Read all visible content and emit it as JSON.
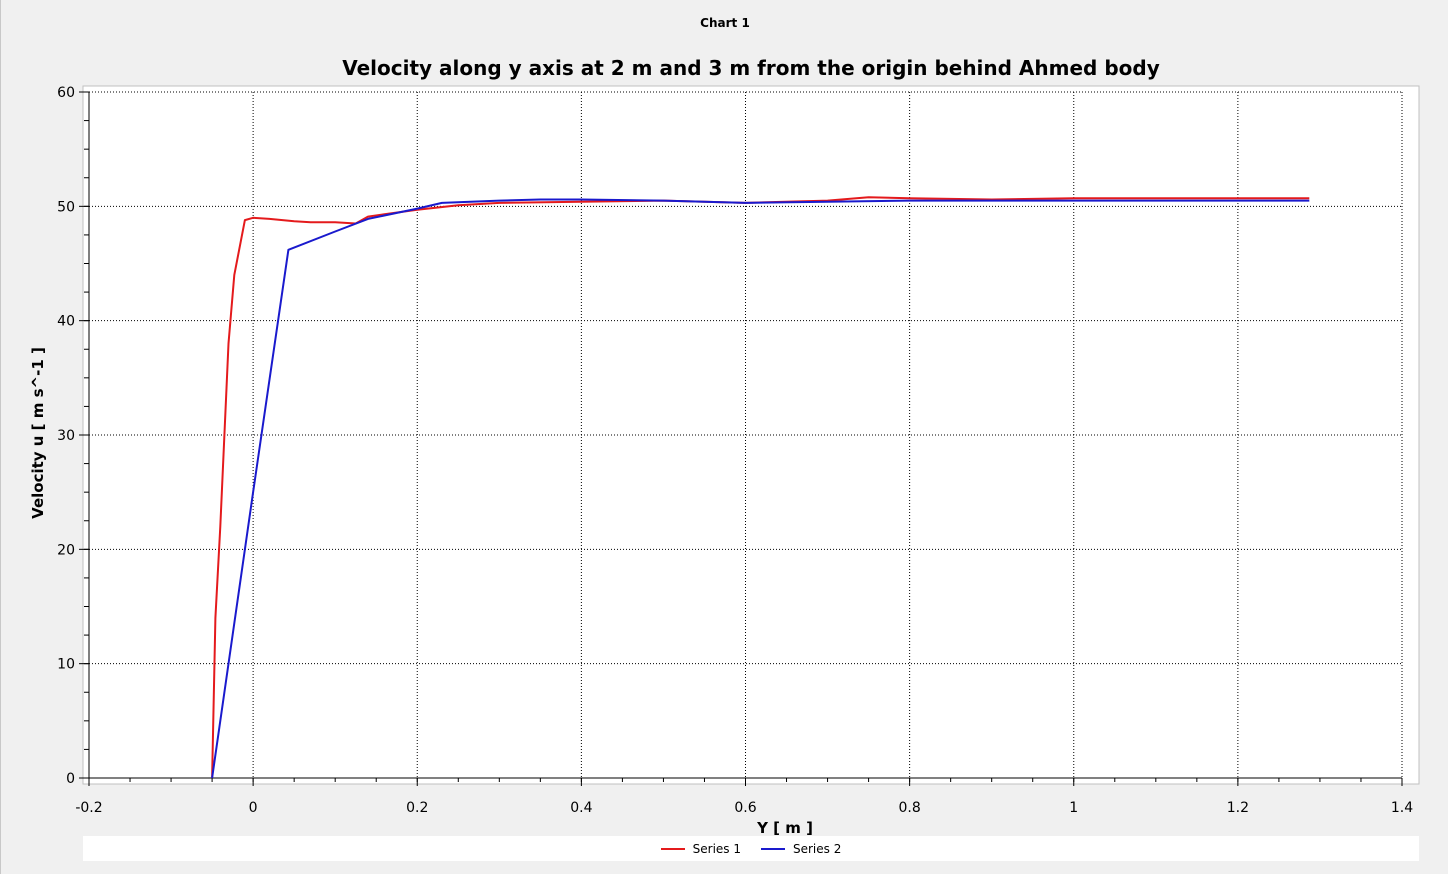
{
  "window": {
    "title": "Chart 1"
  },
  "chart_data": {
    "type": "line",
    "title": "Velocity along y axis at 2 m and 3 m from the origin behind Ahmed body",
    "xlabel": "Y [ m ]",
    "ylabel": "Velocity u [ m s^-1 ]",
    "xlim": [
      -0.2,
      1.4
    ],
    "ylim": [
      0,
      60
    ],
    "xticks": [
      "-0.2",
      "0",
      "0.2",
      "0.4",
      "0.6",
      "0.8",
      "1",
      "1.2",
      "1.4"
    ],
    "yticks": [
      "0",
      "10",
      "20",
      "30",
      "40",
      "50",
      "60"
    ],
    "grid": true,
    "legend_position": "bottom",
    "series": [
      {
        "name": "Series 1",
        "color": "#e41a1c",
        "x": [
          -0.05,
          -0.046,
          -0.04,
          -0.035,
          -0.03,
          -0.023,
          -0.01,
          0.0,
          0.02,
          0.05,
          0.07,
          0.1,
          0.125,
          0.14,
          0.16,
          0.2,
          0.25,
          0.3,
          0.4,
          0.5,
          0.6,
          0.7,
          0.75,
          0.8,
          0.9,
          1.0,
          1.1,
          1.2,
          1.287
        ],
        "y": [
          0,
          14,
          22,
          30,
          38,
          44,
          48.8,
          49.0,
          48.9,
          48.7,
          48.6,
          48.6,
          48.5,
          49.1,
          49.3,
          49.7,
          50.1,
          50.3,
          50.4,
          50.5,
          50.3,
          50.5,
          50.8,
          50.7,
          50.6,
          50.7,
          50.7,
          50.7,
          50.7
        ]
      },
      {
        "name": "Series 2",
        "color": "#1a1acd",
        "x": [
          -0.05,
          0.0,
          0.043,
          0.1,
          0.14,
          0.2,
          0.23,
          0.3,
          0.35,
          0.4,
          0.5,
          0.6,
          0.7,
          0.8,
          0.9,
          1.0,
          1.1,
          1.2,
          1.287
        ],
        "y": [
          0,
          25,
          46.2,
          47.8,
          48.9,
          49.8,
          50.3,
          50.5,
          50.6,
          50.6,
          50.5,
          50.3,
          50.4,
          50.5,
          50.5,
          50.5,
          50.5,
          50.5,
          50.5
        ]
      }
    ]
  }
}
